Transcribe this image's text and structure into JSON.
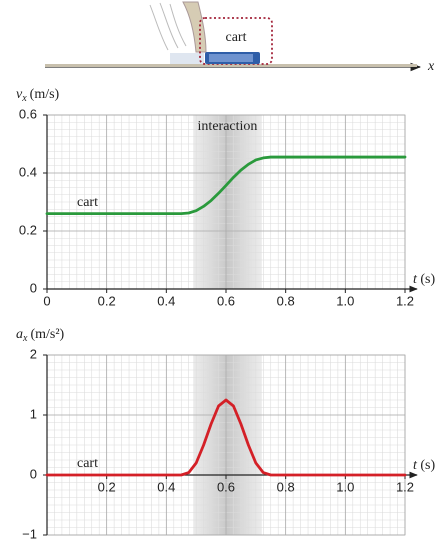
{
  "illustration": {
    "label": "cart",
    "axis_label": "x"
  },
  "chart_data": [
    {
      "type": "line",
      "y_label": {
        "symbol": "v",
        "subscript": "x",
        "unit": "(m/s)"
      },
      "x_label": {
        "symbol": "t",
        "unit": "(s)"
      },
      "highlight": {
        "label": "interaction",
        "x": [
          0.49,
          0.72
        ]
      },
      "x": [
        0,
        0.45,
        0.475,
        0.5,
        0.525,
        0.55,
        0.575,
        0.6,
        0.625,
        0.65,
        0.675,
        0.7,
        0.725,
        0.75,
        1.2
      ],
      "series": [
        {
          "name": "cart",
          "color": "#2a9a3c",
          "values": [
            0.26,
            0.26,
            0.262,
            0.27,
            0.285,
            0.305,
            0.33,
            0.357,
            0.385,
            0.41,
            0.43,
            0.445,
            0.452,
            0.455,
            0.455
          ]
        }
      ],
      "xlim": [
        0,
        1.2
      ],
      "ylim": [
        0,
        0.6
      ],
      "xticks": [
        0,
        0.2,
        0.4,
        0.6,
        0.8,
        {
          "value": 1,
          "label": "1.0"
        },
        1.2
      ],
      "yticks": [
        0,
        0.2,
        0.4,
        0.6
      ],
      "grid": true
    },
    {
      "type": "line",
      "y_label": {
        "symbol": "a",
        "subscript": "x",
        "unit": "(m/s²)"
      },
      "x_label": {
        "symbol": "t",
        "unit": "(s)"
      },
      "highlight": {
        "x": [
          0.49,
          0.72
        ]
      },
      "x": [
        0,
        0.45,
        0.475,
        0.5,
        0.525,
        0.55,
        0.575,
        0.6,
        0.625,
        0.65,
        0.675,
        0.7,
        0.725,
        0.75,
        1.2
      ],
      "series": [
        {
          "name": "cart",
          "color": "#d42027",
          "values": [
            0,
            0,
            0.04,
            0.2,
            0.5,
            0.85,
            1.15,
            1.25,
            1.15,
            0.85,
            0.5,
            0.2,
            0.04,
            0,
            0
          ]
        }
      ],
      "xlim": [
        0,
        1.2
      ],
      "ylim": [
        -1,
        2
      ],
      "xticks": [
        0.2,
        0.4,
        0.6,
        0.8,
        {
          "value": 1,
          "label": "1.0"
        },
        1.2
      ],
      "yticks": [
        {
          "value": -1,
          "label": "−1"
        },
        0,
        1,
        2
      ],
      "grid": true
    }
  ]
}
